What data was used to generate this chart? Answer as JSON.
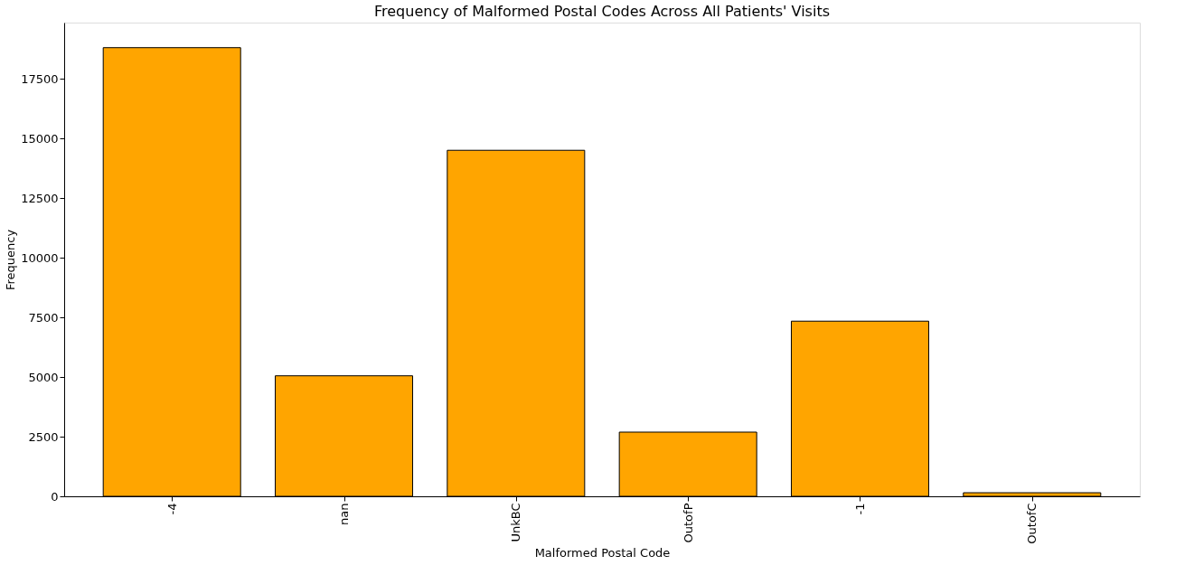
{
  "chart_data": {
    "type": "bar",
    "title": "Frequency of Malformed Postal Codes Across All Patients' Visits",
    "xlabel": "Malformed Postal Code",
    "ylabel": "Frequency",
    "categories": [
      "-4",
      "nan",
      "UnkBC",
      "OutofP",
      "-1",
      "OutofC"
    ],
    "values": [
      18800,
      5050,
      14500,
      2690,
      7340,
      150
    ],
    "color": "#ffa500",
    "ylim": [
      0,
      19850
    ],
    "yticks": [
      0,
      2500,
      5000,
      7500,
      10000,
      12500,
      15000,
      17500
    ],
    "grid": false
  }
}
